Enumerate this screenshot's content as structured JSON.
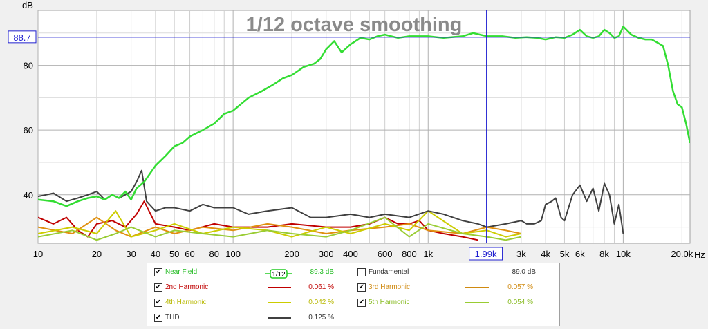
{
  "chart_data": {
    "type": "line",
    "title": "1/12 octave smoothing",
    "ylabel": "dB",
    "xunit": "Hz",
    "xscale": "log",
    "xlim": [
      10,
      22000
    ],
    "ylim": [
      25,
      97
    ],
    "grid": true,
    "x_ticks": [
      "10",
      "20",
      "30",
      "40",
      "50",
      "60",
      "80",
      "100",
      "200",
      "300",
      "400",
      "600",
      "800",
      "1k",
      "3k",
      "4k",
      "5k",
      "6k",
      "8k",
      "10k",
      "20.0k"
    ],
    "x_tick_values": [
      10,
      20,
      30,
      40,
      50,
      60,
      80,
      100,
      200,
      300,
      400,
      600,
      800,
      1000,
      3000,
      4000,
      5000,
      6000,
      8000,
      10000,
      20000
    ],
    "y_ticks": [
      "40",
      "60",
      "80"
    ],
    "y_tick_values": [
      40,
      60,
      80
    ],
    "cursor": {
      "x_label": "1.99k",
      "x_value": 1990,
      "y_label": "88.7",
      "y_value": 88.7
    },
    "series": [
      {
        "name": "Near Field",
        "color": "#33dd33",
        "x": [
          10,
          12,
          14,
          16,
          18,
          20,
          22,
          24,
          26,
          28,
          30,
          32,
          35,
          40,
          45,
          50,
          55,
          60,
          70,
          80,
          90,
          100,
          120,
          140,
          160,
          180,
          200,
          230,
          260,
          280,
          300,
          330,
          360,
          400,
          450,
          500,
          550,
          600,
          700,
          800,
          1000,
          1200,
          1500,
          1700,
          2000,
          2400,
          2800,
          3200,
          3600,
          4000,
          4500,
          5000,
          5500,
          6000,
          6500,
          7000,
          7500,
          8000,
          8500,
          9000,
          9500,
          10000,
          11000,
          12000,
          13000,
          14000,
          15000,
          16000,
          17000,
          18000,
          19000,
          20000,
          21000,
          22000
        ],
        "y": [
          38.5,
          38,
          36.5,
          38,
          39,
          39.5,
          38.5,
          40,
          39,
          41,
          38.5,
          42,
          44,
          49,
          52,
          55,
          56,
          58,
          60,
          62,
          65,
          66,
          70,
          72,
          74,
          76,
          77,
          79.5,
          80.5,
          82,
          85,
          87.5,
          84,
          86.5,
          88.5,
          88,
          89,
          89.5,
          88.5,
          89,
          89,
          88.5,
          89,
          90,
          89,
          89,
          88.5,
          88.7,
          88.5,
          88,
          88.7,
          88.5,
          89.5,
          91,
          89,
          88.5,
          89,
          91,
          90,
          88.5,
          89,
          92,
          89.5,
          88.5,
          88,
          88,
          87,
          86,
          80,
          72,
          68,
          67,
          62,
          56
        ]
      },
      {
        "name": "2nd Harmonic",
        "color": "#c00000",
        "x": [
          10,
          12,
          14,
          16,
          18,
          20,
          24,
          28,
          32,
          35,
          40,
          50,
          60,
          80,
          100,
          150,
          200,
          300,
          400,
          500,
          600,
          700,
          800,
          900,
          1000,
          1200,
          1500,
          1800
        ],
        "y": [
          33,
          31,
          33,
          29,
          27,
          31,
          32,
          30,
          34,
          38,
          31,
          30,
          29,
          31,
          30,
          30,
          31,
          30,
          30,
          31,
          33,
          31,
          31,
          32,
          29,
          28,
          27,
          26
        ]
      },
      {
        "name": "3rd Harmonic",
        "color": "#e09010",
        "x": [
          10,
          15,
          20,
          25,
          30,
          40,
          50,
          70,
          100,
          150,
          200,
          300,
          400,
          600,
          800,
          1000,
          1500,
          2000,
          2500,
          3000
        ],
        "y": [
          30,
          28,
          33,
          29,
          27,
          30,
          28,
          30,
          29,
          31,
          30,
          28,
          29,
          30,
          31,
          29,
          28,
          30,
          29,
          28
        ]
      },
      {
        "name": "4th Harmonic",
        "color": "#cccc00",
        "x": [
          10,
          15,
          20,
          25,
          30,
          40,
          50,
          70,
          100,
          150,
          200,
          300,
          400,
          600,
          800,
          1000,
          1500,
          2000,
          2500,
          3000
        ],
        "y": [
          28,
          30,
          28,
          35,
          27,
          29,
          31,
          28,
          30,
          29,
          27,
          30,
          28,
          31,
          29,
          35,
          28,
          29,
          27,
          28
        ]
      },
      {
        "name": "5th Harmonic",
        "color": "#99cc33",
        "x": [
          10,
          15,
          20,
          25,
          30,
          40,
          50,
          70,
          100,
          150,
          200,
          300,
          400,
          600,
          800,
          1000,
          1500,
          2000,
          2500,
          3000
        ],
        "y": [
          27,
          29,
          26,
          28,
          30,
          27,
          29,
          28,
          27,
          29,
          28,
          27,
          29,
          33,
          27,
          31,
          28,
          27,
          26,
          27
        ]
      },
      {
        "name": "THD",
        "color": "#404040",
        "x": [
          10,
          11,
          12,
          14,
          16,
          18,
          20,
          22,
          24,
          26,
          28,
          30,
          32,
          34,
          36,
          40,
          45,
          50,
          60,
          70,
          80,
          100,
          120,
          150,
          200,
          250,
          300,
          400,
          500,
          600,
          800,
          1000,
          1200,
          1500,
          1800,
          2000,
          2500,
          3000,
          3200,
          3500,
          3800,
          4000,
          4300,
          4500,
          4800,
          5000,
          5500,
          6000,
          6500,
          7000,
          7500,
          8000,
          8500,
          9000,
          9500,
          10000
        ],
        "y": [
          39.5,
          40,
          40.5,
          38,
          39,
          40,
          41,
          38.5,
          40,
          39,
          40,
          41,
          44,
          47.5,
          38,
          35,
          36,
          36,
          35,
          37,
          36,
          36,
          34,
          35,
          36,
          33,
          33,
          34,
          33,
          34,
          33,
          35,
          34,
          32,
          31,
          30,
          31,
          32,
          31,
          31,
          32,
          37,
          38,
          39,
          33,
          32,
          40,
          43,
          38,
          42,
          35,
          43.5,
          40,
          31,
          37,
          28
        ]
      }
    ]
  },
  "legend": {
    "items": [
      {
        "label": "Near Field",
        "value": "89.3 dB",
        "checked": true
      },
      {
        "label": "Fundamental",
        "value": "89.0 dB",
        "checked": false
      },
      {
        "label": "2nd Harmonic",
        "value": "0.061 %",
        "checked": true
      },
      {
        "label": "3rd Harmonic",
        "value": "0.057 %",
        "checked": true
      },
      {
        "label": "4th Harmonic",
        "value": "0.042 %",
        "checked": true
      },
      {
        "label": "5th Harmonic",
        "value": "0.054 %",
        "checked": true
      },
      {
        "label": "THD",
        "value": "0.125 %",
        "checked": true
      }
    ],
    "smoothing_badge": "1/12",
    "colors": {
      "Near Field": "#22bb22",
      "Fundamental": "#333333",
      "2nd Harmonic": "#c00000",
      "3rd Harmonic": "#d08a10",
      "4th Harmonic": "#b8b800",
      "5th Harmonic": "#88bb22",
      "THD": "#333333"
    }
  }
}
